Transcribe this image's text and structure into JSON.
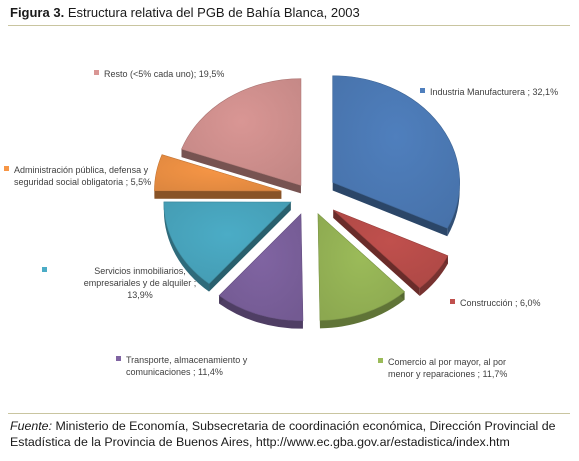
{
  "figure": {
    "label": "Figura 3.",
    "title": "Estructura relativa del PGB de Bahía Blanca, 2003"
  },
  "source": {
    "label": "Fuente:",
    "text": "Ministerio de Economía, Subsecretaria de coordinación económica, Dirección Provincial de Estadística de la Provincia de Buenos Aires, http://www.ec.gba.gov.ar/estadistica/index.htm"
  },
  "chart_data": {
    "type": "pie",
    "style": "exploded-3d",
    "legend": "labels-around-slices",
    "slices": [
      {
        "name": "Industria Manufacturera",
        "label_lines": [
          "Industria Manufacturera ; 32,1%"
        ],
        "value": 32.1,
        "color": "#4f7fbd"
      },
      {
        "name": "Construcción",
        "label_lines": [
          "Construcción ; 6,0%"
        ],
        "value": 6.0,
        "color": "#c0504d"
      },
      {
        "name": "Comercio al por mayor, al por menor y reparaciones",
        "label_lines": [
          "Comercio al por mayor, al por",
          "menor y reparaciones ; 11,7%"
        ],
        "value": 11.7,
        "color": "#9bbb59"
      },
      {
        "name": "Transporte, almacenamiento y comunicaciones",
        "label_lines": [
          "Transporte, almacenamiento y",
          "comunicaciones ; 11,4%"
        ],
        "value": 11.4,
        "color": "#8064a2"
      },
      {
        "name": "Servicios inmobiliarios, empresariales y de alquiler",
        "label_lines": [
          "Servicios inmobiliarios,",
          "empresariales  y de alquiler ;",
          "13,9%"
        ],
        "value": 13.9,
        "color": "#4bacc6"
      },
      {
        "name": "Administración pública, defensa y seguridad social obligatoria",
        "label_lines": [
          "Administración pública, defensa y",
          "seguridad social obligatoria ; 5,5%"
        ],
        "value": 5.5,
        "color": "#f79646"
      },
      {
        "name": "Resto (<5% cada uno)",
        "label_lines": [
          "Resto (<5% cada uno); 19,5%"
        ],
        "value": 19.5,
        "color": "#d99694"
      }
    ]
  }
}
